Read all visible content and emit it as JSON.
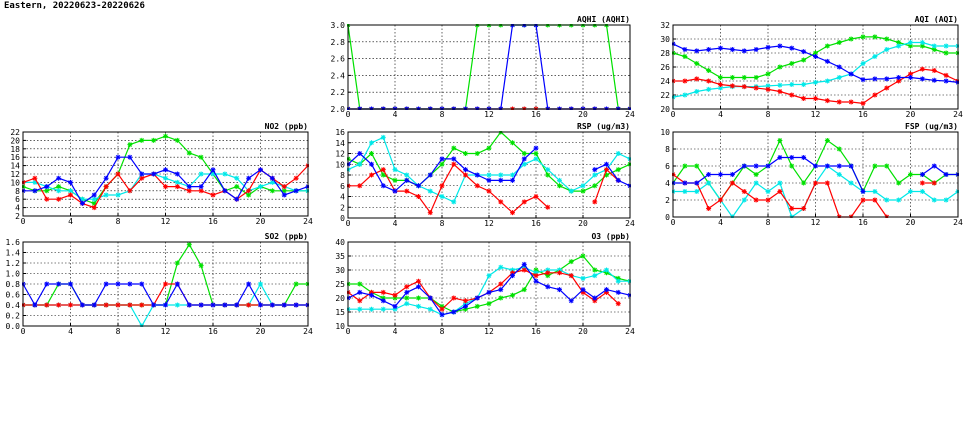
{
  "page": {
    "title": "Eastern, 20220623-20220626"
  },
  "colors": {
    "series": [
      "#00e000",
      "#00e8e8",
      "#ff0000",
      "#0000ff"
    ],
    "grid": "#000000"
  },
  "chart_data": [
    {
      "id": "aqhi",
      "type": "line",
      "title": "AQHI (AQHI)",
      "xlim": [
        0,
        24
      ],
      "ylim": [
        2.0,
        3.0
      ],
      "xticks": [
        0,
        4,
        8,
        12,
        16,
        20,
        24
      ],
      "yticks": [
        "2.0",
        "2.2",
        "2.4",
        "2.6",
        "2.8",
        "3.0"
      ],
      "grid": true,
      "series": [
        {
          "values": [
            3,
            2,
            2,
            2,
            2,
            2,
            2,
            2,
            2,
            2,
            2,
            3,
            3,
            3,
            3,
            3,
            3,
            3,
            3,
            3,
            3,
            3,
            3,
            2,
            2
          ]
        },
        {
          "values": [
            2,
            2,
            2,
            2,
            2,
            2,
            2,
            2,
            2,
            2,
            2,
            2,
            2,
            2,
            2,
            2,
            2,
            2,
            2,
            2,
            2,
            2,
            2,
            2,
            2
          ]
        },
        {
          "values": [
            2,
            2,
            2,
            2,
            2,
            2,
            2,
            2,
            2,
            2,
            2,
            2,
            2,
            2,
            2,
            2,
            2,
            2,
            2,
            2,
            2,
            2,
            2,
            2,
            2
          ]
        },
        {
          "values": [
            2,
            2,
            2,
            2,
            2,
            2,
            2,
            2,
            2,
            2,
            2,
            2,
            2,
            2,
            3,
            3,
            3,
            2,
            2,
            2,
            2,
            2,
            2,
            2,
            2
          ]
        }
      ]
    },
    {
      "id": "aqi",
      "type": "line",
      "title": "AQI (AQI)",
      "xlim": [
        0,
        24
      ],
      "ylim": [
        20,
        32
      ],
      "xticks": [
        0,
        4,
        8,
        12,
        16,
        20,
        24
      ],
      "yticks": [
        "20",
        "22",
        "24",
        "26",
        "28",
        "30",
        "32"
      ],
      "grid": true,
      "series": [
        {
          "values": [
            28,
            27.5,
            26.5,
            25.5,
            24.5,
            24.5,
            24.5,
            24.5,
            25,
            26,
            26.5,
            27,
            28,
            29,
            29.5,
            30,
            30.3,
            30.3,
            30,
            29.5,
            29,
            29,
            28.5,
            28,
            28
          ]
        },
        {
          "values": [
            21.7,
            22,
            22.5,
            22.8,
            23,
            23.2,
            23.2,
            23.2,
            23.3,
            23.4,
            23.5,
            23.5,
            23.8,
            24,
            24.5,
            25,
            26.5,
            27.5,
            28.5,
            29,
            29.5,
            29.5,
            29,
            29,
            29
          ]
        },
        {
          "values": [
            24,
            24,
            24.3,
            24,
            23.5,
            23.3,
            23.2,
            23,
            22.8,
            22.5,
            22,
            21.5,
            21.5,
            21.2,
            21,
            21,
            20.8,
            22,
            23,
            24,
            25,
            25.7,
            25.5,
            24.8,
            24
          ]
        },
        {
          "values": [
            29.3,
            28.5,
            28.3,
            28.5,
            28.7,
            28.5,
            28.3,
            28.5,
            28.8,
            29,
            28.7,
            28.2,
            27.5,
            26.8,
            26,
            25,
            24.2,
            24.3,
            24.3,
            24.5,
            24.5,
            24.3,
            24.1,
            24,
            23.8
          ]
        }
      ]
    },
    {
      "id": "no2",
      "type": "line",
      "title": "NO2 (ppb)",
      "xlim": [
        0,
        24
      ],
      "ylim": [
        2,
        22
      ],
      "xticks": [
        0,
        4,
        8,
        12,
        16,
        20,
        24
      ],
      "yticks": [
        "2",
        "4",
        "6",
        "8",
        "10",
        "12",
        "14",
        "16",
        "18",
        "20",
        "22"
      ],
      "grid": true,
      "series": [
        {
          "values": [
            9,
            8,
            8,
            9,
            8,
            6,
            5,
            9,
            12,
            19,
            20,
            20,
            21,
            20,
            17,
            16,
            12,
            8,
            9,
            7,
            9,
            8,
            8,
            8,
            8
          ]
        },
        {
          "values": [
            10,
            10,
            9,
            8,
            8,
            6,
            6,
            7,
            7,
            8,
            12,
            12,
            11,
            10,
            9,
            12,
            12,
            12,
            11,
            8,
            9,
            10,
            9,
            8,
            8
          ]
        },
        {
          "values": [
            10,
            11,
            6,
            6,
            7,
            5,
            4,
            9,
            12,
            8,
            11,
            12,
            9,
            9,
            8,
            8,
            7,
            8,
            6,
            8,
            13,
            11,
            9,
            11,
            14
          ]
        },
        {
          "values": [
            8,
            8,
            9,
            11,
            10,
            5,
            7,
            11,
            16,
            16,
            12,
            12,
            13,
            12,
            9,
            9,
            13,
            8,
            6,
            11,
            13,
            11,
            7,
            8,
            9
          ]
        }
      ]
    },
    {
      "id": "rsp",
      "type": "line",
      "title": "RSP (ug/m3)",
      "xlim": [
        0,
        24
      ],
      "ylim": [
        0,
        16
      ],
      "xticks": [
        0,
        4,
        8,
        12,
        16,
        20,
        24
      ],
      "yticks": [
        "0",
        "2",
        "4",
        "6",
        "8",
        "10",
        "12",
        "14",
        "16"
      ],
      "grid": true,
      "series": [
        {
          "values": [
            11,
            10,
            12,
            8,
            7,
            7,
            6,
            8,
            10,
            13,
            12,
            12,
            13,
            16,
            14,
            12,
            12,
            8,
            6,
            5,
            5,
            6,
            8,
            9,
            10
          ]
        },
        {
          "values": [
            9,
            10,
            14,
            15,
            9,
            8,
            6,
            5,
            4,
            3,
            8,
            8,
            8,
            8,
            8,
            10,
            11,
            9,
            7,
            5,
            6,
            8,
            9,
            12,
            11
          ]
        },
        {
          "values": [
            6,
            6,
            8,
            9,
            5,
            5,
            4,
            1,
            6,
            10,
            8,
            6,
            5,
            3,
            1,
            3,
            4,
            2,
            null,
            null,
            null,
            3,
            9,
            7,
            null
          ]
        },
        {
          "values": [
            10,
            12,
            10,
            6,
            5,
            7,
            6,
            8,
            11,
            11,
            9,
            8,
            7,
            7,
            7,
            11,
            13,
            null,
            null,
            null,
            null,
            9,
            10,
            7,
            6
          ]
        }
      ]
    },
    {
      "id": "fsp",
      "type": "line",
      "title": "FSP (ug/m3)",
      "xlim": [
        0,
        24
      ],
      "ylim": [
        0,
        10
      ],
      "xticks": [
        0,
        4,
        8,
        12,
        16,
        20,
        24
      ],
      "yticks": [
        "0",
        "2",
        "4",
        "6",
        "8",
        "10"
      ],
      "grid": true,
      "series": [
        {
          "values": [
            4,
            6,
            6,
            4,
            2,
            4,
            6,
            5,
            6,
            9,
            6,
            4,
            6,
            9,
            8,
            6,
            3,
            6,
            6,
            4,
            5,
            5,
            4,
            5,
            5
          ]
        },
        {
          "values": [
            3,
            3,
            3,
            4,
            2,
            0,
            2,
            4,
            3,
            4,
            0,
            1,
            4,
            6,
            5,
            4,
            3,
            3,
            2,
            2,
            3,
            3,
            2,
            2,
            3
          ]
        },
        {
          "values": [
            5,
            4,
            4,
            1,
            2,
            4,
            3,
            2,
            2,
            3,
            1,
            1,
            4,
            4,
            0,
            0,
            2,
            2,
            0,
            null,
            null,
            4,
            4,
            null,
            null
          ]
        },
        {
          "values": [
            4,
            4,
            4,
            5,
            5,
            5,
            6,
            6,
            6,
            7,
            7,
            7,
            6,
            6,
            6,
            6,
            3,
            null,
            null,
            null,
            null,
            5,
            6,
            5,
            5
          ]
        }
      ]
    },
    {
      "id": "so2",
      "type": "line",
      "title": "SO2 (ppb)",
      "xlim": [
        0,
        24
      ],
      "ylim": [
        0,
        1.6
      ],
      "xticks": [
        0,
        4,
        8,
        12,
        16,
        20,
        24
      ],
      "yticks": [
        "0.0",
        "0.2",
        "0.4",
        "0.6",
        "0.8",
        "1.0",
        "1.2",
        "1.4",
        "1.6"
      ],
      "grid": true,
      "series": [
        {
          "values": [
            0.4,
            0.4,
            0.4,
            0.8,
            0.8,
            0.4,
            0.4,
            0.4,
            0.4,
            0.4,
            0.4,
            0.4,
            0.4,
            1.2,
            1.55,
            1.15,
            0.4,
            0.4,
            0.4,
            0.4,
            0.4,
            0.4,
            0.4,
            0.8,
            0.8
          ]
        },
        {
          "values": [
            0.4,
            0.4,
            0.4,
            0.4,
            0.4,
            0.4,
            0.4,
            0.4,
            0.4,
            0.4,
            0.0,
            0.4,
            0.4,
            0.4,
            0.4,
            0.4,
            0.4,
            0.4,
            0.4,
            0.4,
            0.8,
            0.4,
            0.4,
            0.4,
            0.4
          ]
        },
        {
          "values": [
            0.4,
            0.4,
            0.4,
            0.4,
            0.4,
            0.4,
            0.4,
            0.4,
            0.4,
            0.4,
            0.4,
            0.4,
            0.8,
            0.8,
            0.4,
            0.4,
            0.4,
            0.4,
            0.4,
            0.4,
            0.4,
            0.4,
            0.4,
            0.4,
            0.4
          ]
        },
        {
          "values": [
            0.8,
            0.4,
            0.8,
            0.8,
            0.8,
            0.4,
            0.4,
            0.8,
            0.8,
            0.8,
            0.8,
            0.4,
            0.4,
            0.8,
            0.4,
            0.4,
            0.4,
            0.4,
            0.4,
            0.8,
            0.4,
            0.4,
            0.4,
            0.4,
            0.4
          ]
        }
      ]
    },
    {
      "id": "o3",
      "type": "line",
      "title": "O3 (ppb)",
      "xlim": [
        0,
        24
      ],
      "ylim": [
        10,
        40
      ],
      "xticks": [
        0,
        4,
        8,
        12,
        16,
        20,
        24
      ],
      "yticks": [
        "10",
        "15",
        "20",
        "25",
        "30",
        "35",
        "40"
      ],
      "grid": true,
      "series": [
        {
          "values": [
            25,
            25,
            22,
            20,
            20,
            20,
            20,
            20,
            17,
            15,
            16,
            17,
            18,
            20,
            21,
            23,
            30,
            28,
            30,
            33,
            35,
            30,
            29,
            27,
            26
          ]
        },
        {
          "values": [
            16,
            16,
            16,
            16,
            16,
            18,
            17,
            16,
            14,
            15,
            18,
            20,
            28,
            31,
            30,
            31,
            29,
            30,
            30,
            28,
            27,
            28,
            30,
            26,
            26
          ]
        },
        {
          "values": [
            22,
            19,
            22,
            22,
            21,
            24,
            26,
            20,
            16,
            20,
            19,
            20,
            22,
            25,
            29,
            30,
            28,
            29,
            29,
            28,
            22,
            19,
            22,
            18,
            null
          ]
        },
        {
          "values": [
            20,
            22,
            21,
            19,
            17,
            22,
            24,
            20,
            14,
            15,
            17,
            20,
            22,
            23,
            28,
            32,
            26,
            24,
            23,
            19,
            23,
            20,
            23,
            22,
            21
          ]
        }
      ]
    }
  ]
}
